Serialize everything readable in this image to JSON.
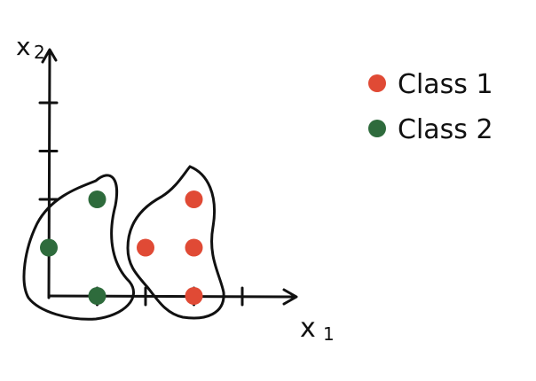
{
  "chart_data": {
    "type": "scatter",
    "xlabel": "x",
    "xlabel_sub": "1",
    "ylabel": "x",
    "ylabel_sub": "2",
    "xlim": [
      0,
      5
    ],
    "ylim": [
      0,
      5
    ],
    "x_ticks": [
      1,
      2,
      3,
      4
    ],
    "y_ticks": [
      2,
      3,
      4
    ],
    "legend_placement": "top-right",
    "series": [
      {
        "name": "Class 1",
        "color": "#e04a35",
        "points": [
          [
            3,
            2
          ],
          [
            2,
            1
          ],
          [
            3,
            0
          ],
          [
            3,
            1
          ]
        ]
      },
      {
        "name": "Class 2",
        "color": "#2e6b3c",
        "points": [
          [
            1,
            2
          ],
          [
            0,
            1
          ],
          [
            1,
            0
          ]
        ]
      }
    ]
  }
}
